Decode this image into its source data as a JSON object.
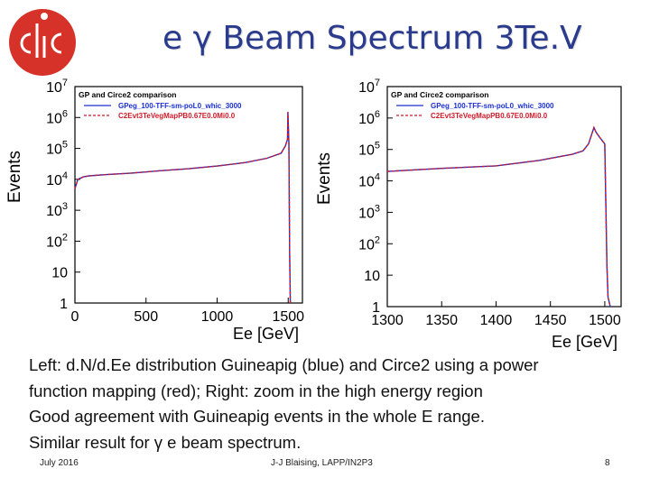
{
  "slide": {
    "title": "e γ Beam Spectrum 3Te.V",
    "logo_text": "CLIC",
    "caption": [
      "Left: d.N/d.Ee distribution Guineapig (blue) and Circe2 using a power",
      "function mapping (red); Right: zoom in the high energy region",
      "Good agreement with Guineapig events in the whole E range.",
      "Similar result for γ e beam spectrum."
    ],
    "footer": {
      "date": "July 2016",
      "author": "J-J Blaising, LAPP/IN2P3",
      "page": "8"
    },
    "colors": {
      "title": "#2a3a8c",
      "logo_red": "#d7322a",
      "guineapig": "#1a2fd0",
      "circe2": "#d01a2a"
    }
  },
  "chart_data": [
    {
      "type": "line",
      "title": "GP and Circe2 comparison",
      "xlabel": "Ee [GeV]",
      "ylabel": "Events",
      "y_scale": "log",
      "xlim": [
        0,
        1600
      ],
      "ylim": [
        1,
        10000000
      ],
      "x_ticks": [
        "0",
        "500",
        "1000",
        "1500"
      ],
      "y_ticks": [
        "1",
        "10",
        "10^2",
        "10^3",
        "10^4",
        "10^5",
        "10^6",
        "10^7"
      ],
      "legend_position": "top-left",
      "series": [
        {
          "name": "GPeg_100-TFF-sm-poL0_whic_3000",
          "color": "#1a2fd0",
          "x": [
            0,
            20,
            60,
            100,
            200,
            400,
            600,
            800,
            1000,
            1200,
            1350,
            1450,
            1480,
            1495,
            1498,
            1505,
            1510,
            1515
          ],
          "y": [
            5000,
            10000,
            12000,
            13000,
            14000,
            16000,
            19000,
            22000,
            27000,
            35000,
            48000,
            70000,
            120000,
            200000,
            1500000,
            150000,
            50,
            1
          ]
        },
        {
          "name": "C2Evt3TeVegMapPB0.67E0.0Mi0.0",
          "color": "#d01a2a",
          "x": [
            0,
            20,
            60,
            100,
            200,
            400,
            600,
            800,
            1000,
            1200,
            1350,
            1450,
            1480,
            1495,
            1498,
            1505,
            1510,
            1515
          ],
          "y": [
            5000,
            10000,
            12000,
            13000,
            14000,
            16000,
            19000,
            22000,
            27000,
            35000,
            48000,
            70000,
            120000,
            200000,
            1500000,
            150000,
            50,
            1
          ]
        }
      ]
    },
    {
      "type": "line",
      "title": "GP and Circe2 comparison",
      "xlabel": "Ee [GeV]",
      "ylabel": "Events",
      "y_scale": "log",
      "xlim": [
        1300,
        1515
      ],
      "ylim": [
        1,
        10000000
      ],
      "x_ticks": [
        "1300",
        "1350",
        "1400",
        "1450",
        "1500"
      ],
      "y_ticks": [
        "1",
        "10",
        "10^2",
        "10^3",
        "10^4",
        "10^5",
        "10^6",
        "10^7"
      ],
      "legend_position": "top-left",
      "series": [
        {
          "name": "GPeg_100-TFF-sm-poL0_whic_3000",
          "color": "#1a2fd0",
          "x": [
            1300,
            1350,
            1400,
            1440,
            1470,
            1480,
            1485,
            1490,
            1492,
            1495,
            1500,
            1502,
            1503,
            1505
          ],
          "y": [
            20000,
            25000,
            30000,
            45000,
            70000,
            90000,
            150000,
            500000,
            350000,
            250000,
            150000,
            20,
            2,
            1
          ]
        },
        {
          "name": "C2Evt3TeVegMapPB0.67E0.0Mi0.0",
          "color": "#d01a2a",
          "x": [
            1300,
            1350,
            1400,
            1440,
            1470,
            1480,
            1485,
            1490,
            1492,
            1495,
            1500,
            1502,
            1503,
            1505
          ],
          "y": [
            20000,
            25000,
            30000,
            45000,
            70000,
            90000,
            150000,
            500000,
            350000,
            250000,
            150000,
            20,
            2,
            1
          ]
        }
      ]
    }
  ]
}
